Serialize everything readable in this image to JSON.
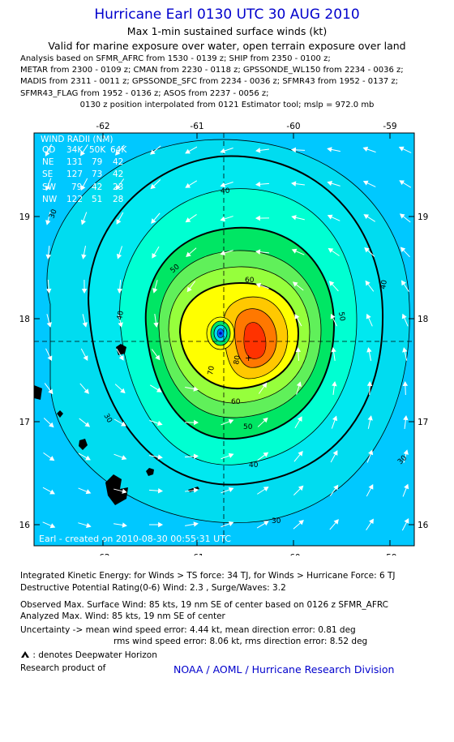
{
  "header": {
    "title": "Hurricane Earl 0130 UTC 30 AUG 2010",
    "subtitle1": "Max 1-min sustained surface winds (kt)",
    "subtitle2": "Valid for marine exposure over water, open terrain exposure over land"
  },
  "analysis_lines": [
    "Analysis based on SFMR_AFRC from 1530 - 0139 z; SHIP from 2350 - 0100 z;",
    "METAR from 2300 - 0109 z; CMAN from 2230 - 0118 z; GPSSONDE_WL150 from 2234 - 0036 z;",
    "MADIS from 2311 - 0011 z; GPSSONDE_SFC from 2234 - 0036 z; SFMR43 from 1952 - 0137 z;",
    "SFMR43_FLAG from 1952 - 0136 z; ASOS from 2237 - 0056 z;"
  ],
  "position_note": "0130 z position interpolated from 0121 Estimator tool; mslp = 972.0 mb",
  "map": {
    "lon_labels": [
      "-62",
      "-61",
      "-60",
      "-59"
    ],
    "lat_labels": [
      "19",
      "18",
      "17",
      "16"
    ],
    "wind_radii": {
      "title": "WIND RADII (NM)",
      "header": [
        "QD",
        "34K",
        "50K",
        "64K"
      ],
      "rows": [
        [
          "NE",
          "131",
          "79",
          "42"
        ],
        [
          "SE",
          "127",
          "73",
          "42"
        ],
        [
          "SW",
          "79",
          "42",
          "23"
        ],
        [
          "NW",
          "122",
          "51",
          "28"
        ]
      ]
    },
    "contour_labels": [
      "30",
      "30",
      "30",
      "30",
      "40",
      "40",
      "40",
      "40",
      "50",
      "50",
      "50",
      "60",
      "60",
      "70",
      "80"
    ],
    "credit": "Earl - created on 2010-08-30 00:55:31 UTC",
    "colors": {
      "lt30": "#00c8ff",
      "c30": "#00dcf0",
      "c40": "#00ffd2",
      "c50": "#00e664",
      "c60": "#96ff3c",
      "c65": "#ffff00",
      "c70": "#ffc800",
      "c80": "#ff7800",
      "c85": "#ff3200",
      "eye": "#0066ff",
      "land": "#000000"
    }
  },
  "footer": {
    "ike": "Integrated Kinetic Energy:  for Winds > TS force: 34 TJ,  for Winds > Hurricane Force: 6 TJ",
    "dpr": "Destructive Potential Rating(0-6)   Wind: 2.3 , Surge/Waves: 3.2",
    "obs_max": "Observed Max. Surface Wind: 85 kts, 19 nm SE of center based on 0126 z SFMR_AFRC",
    "ana_max": "Analyzed Max. Wind: 85 kts, 19 nm SE of center",
    "uncert1": "Uncertainty -> mean wind speed error: 4.44 kt,   mean direction error: 0.81 deg",
    "uncert2": "rms wind speed error: 8.06 kt,   rms direction error: 8.52 deg",
    "deepwater": ": denotes Deepwater Horizon",
    "research": "Research product of",
    "org": "NOAA / AOML / Hurricane Research Division"
  }
}
